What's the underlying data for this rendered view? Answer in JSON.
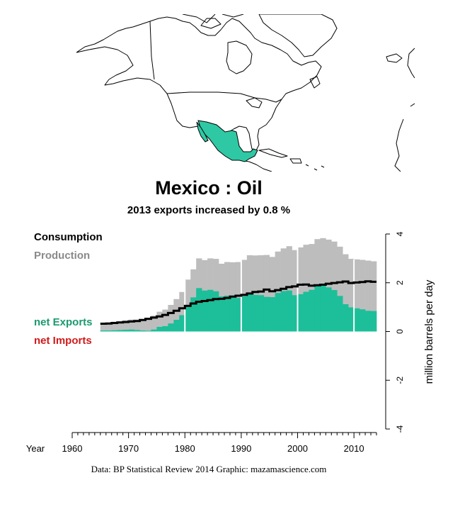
{
  "title": "Mexico :  Oil",
  "subtitle": "2013 exports increased by 0.8 %",
  "map": {
    "highlight_country": "Mexico",
    "highlight_color": "#2ec9a4"
  },
  "legend": {
    "consumption": "Consumption",
    "production": "Production",
    "net_exports": "net Exports",
    "net_imports": "net Imports"
  },
  "colors": {
    "consumption": "#000000",
    "production": "#bdbdbd",
    "net_exports": "#1cbf99",
    "net_imports": "#d01a1a",
    "label_exports": "#1a9a6e"
  },
  "source": "Data: BP Statistical Review 2014    Graphic: mazamascience.com",
  "chart_data": {
    "type": "area",
    "x_label": "Year",
    "ylabel": "million barrels per day",
    "xlim": [
      1960,
      2014
    ],
    "ylim": [
      -4,
      4
    ],
    "x_ticks": [
      1960,
      1970,
      1980,
      1990,
      2000,
      2010
    ],
    "y_ticks": [
      -4,
      -2,
      0,
      2,
      4
    ],
    "y_tick_labels": [
      "-4",
      "-2",
      "0",
      "2",
      "4"
    ],
    "x": [
      1965,
      1966,
      1967,
      1968,
      1969,
      1970,
      1971,
      1972,
      1973,
      1974,
      1975,
      1976,
      1977,
      1978,
      1979,
      1980,
      1981,
      1982,
      1983,
      1984,
      1985,
      1986,
      1987,
      1988,
      1989,
      1990,
      1991,
      1992,
      1993,
      1994,
      1995,
      1996,
      1997,
      1998,
      1999,
      2000,
      2001,
      2002,
      2003,
      2004,
      2005,
      2006,
      2007,
      2008,
      2009,
      2010,
      2011,
      2012,
      2013
    ],
    "series": [
      {
        "name": "Consumption",
        "values": [
          0.32,
          0.33,
          0.35,
          0.37,
          0.39,
          0.41,
          0.43,
          0.47,
          0.52,
          0.57,
          0.62,
          0.68,
          0.76,
          0.85,
          0.95,
          1.05,
          1.15,
          1.22,
          1.25,
          1.29,
          1.33,
          1.34,
          1.38,
          1.43,
          1.47,
          1.5,
          1.56,
          1.62,
          1.64,
          1.72,
          1.65,
          1.7,
          1.75,
          1.82,
          1.85,
          1.92,
          1.93,
          1.88,
          1.9,
          1.92,
          1.96,
          1.99,
          2.02,
          2.05,
          1.99,
          2.01,
          2.03,
          2.06,
          2.04
        ]
      },
      {
        "name": "Production",
        "values": [
          0.36,
          0.37,
          0.4,
          0.43,
          0.46,
          0.49,
          0.49,
          0.51,
          0.55,
          0.65,
          0.81,
          0.9,
          1.09,
          1.33,
          1.62,
          2.13,
          2.55,
          3.0,
          2.93,
          3.0,
          2.98,
          2.78,
          2.85,
          2.84,
          2.85,
          2.94,
          3.13,
          3.12,
          3.13,
          3.14,
          3.06,
          3.28,
          3.41,
          3.5,
          3.34,
          3.45,
          3.56,
          3.59,
          3.79,
          3.83,
          3.77,
          3.69,
          3.48,
          3.17,
          2.98,
          2.96,
          2.94,
          2.91,
          2.88
        ]
      }
    ]
  }
}
